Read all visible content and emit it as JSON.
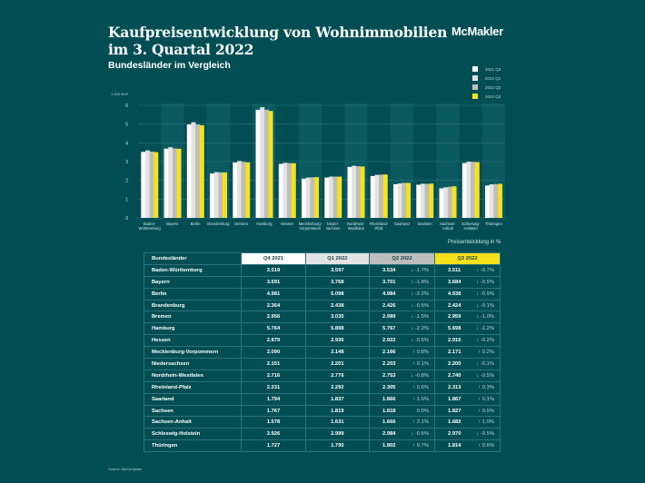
{
  "header": {
    "title_line1": "Kaufpreisentwicklung von Wohnimmobilien",
    "title_line2": "im 3. Quartal 2022",
    "subtitle": "Bundesländer im Vergleich",
    "logo": "McMakler"
  },
  "colors": {
    "background": "#004e54",
    "q4_2021": "#ffffff",
    "q1_2022": "#e3e3e3",
    "q2_2022": "#bdbdbd",
    "q3_2022": "#f5e21c"
  },
  "chart_data": {
    "type": "bar",
    "title": "Kaufpreisentwicklung von Wohnimmobilien im 3. Quartal 2022",
    "subtitle": "Bundesländer im Vergleich",
    "ylabel": "1.000 €/m²",
    "xlabel": "",
    "ylim": [
      0,
      6
    ],
    "yticks": [
      "0",
      "1",
      "2",
      "3",
      "4",
      "5",
      "6"
    ],
    "grid": true,
    "legend_position": "top-right",
    "categories": [
      "Baden-\nWürttemberg",
      "Bayern",
      "Berlin",
      "Brandenburg",
      "Bremen",
      "Hamburg",
      "Hessen",
      "Mecklenburg-\nVorpommern",
      "Nieder-\nsachsen",
      "Nordrhein-\nWestfalen",
      "Rheinland-\nPfalz",
      "Saarland",
      "Sachsen",
      "Sachsen-\nAnhalt",
      "Schleswig-\nHolstein",
      "Thüringen"
    ],
    "series": [
      {
        "name": "2021 Q4",
        "values": [
          3.519,
          3.691,
          4.981,
          2.364,
          2.956,
          5.764,
          2.879,
          2.09,
          2.151,
          2.716,
          2.231,
          1.794,
          1.767,
          1.578,
          2.926,
          1.727
        ]
      },
      {
        "name": "2022 Q1",
        "values": [
          3.597,
          3.768,
          5.098,
          2.438,
          3.035,
          5.898,
          2.936,
          2.148,
          2.201,
          2.776,
          2.292,
          1.837,
          1.819,
          1.631,
          2.999,
          1.79
        ]
      },
      {
        "name": "2022 Q2",
        "values": [
          3.534,
          3.701,
          4.984,
          2.426,
          2.989,
          5.767,
          2.922,
          2.166,
          2.203,
          2.753,
          2.305,
          1.866,
          1.818,
          1.666,
          2.984,
          1.802
        ]
      },
      {
        "name": "2022 Q3",
        "values": [
          3.511,
          3.684,
          4.938,
          2.424,
          2.959,
          5.698,
          2.915,
          2.171,
          2.2,
          2.74,
          2.313,
          1.867,
          1.827,
          1.682,
          2.97,
          1.814
        ]
      }
    ]
  },
  "table": {
    "caption": "Preisentwicklung in %",
    "headers": [
      "Bundesländer",
      "Q4 2021",
      "Q1 2022",
      "Q2 2022",
      "Q3 2022"
    ],
    "rows": [
      {
        "state": "Baden-Württemberg",
        "q4": "3.519",
        "q1": "3.597",
        "q2": "3.534",
        "q2_chg": "↓ -1.7%",
        "q3": "3.511",
        "q3_chg": "↓ -0.7%"
      },
      {
        "state": "Bayern",
        "q4": "3.691",
        "q1": "3.768",
        "q2": "3.701",
        "q2_chg": "↓ -1.8%",
        "q3": "3.684",
        "q3_chg": "↓ -0.5%"
      },
      {
        "state": "Berlin",
        "q4": "4.981",
        "q1": "5.098",
        "q2": "4.984",
        "q2_chg": "↓ -2.2%",
        "q3": "4.938",
        "q3_chg": "↓ -0.9%"
      },
      {
        "state": "Brandenburg",
        "q4": "2.364",
        "q1": "2.438",
        "q2": "2.426",
        "q2_chg": "↓ -0.5%",
        "q3": "2.424",
        "q3_chg": "↓ -0.1%"
      },
      {
        "state": "Bremen",
        "q4": "2.956",
        "q1": "3.035",
        "q2": "2.989",
        "q2_chg": "↓ -1.5%",
        "q3": "2.959",
        "q3_chg": "↓ -1.0%"
      },
      {
        "state": "Hamburg",
        "q4": "5.764",
        "q1": "5.898",
        "q2": "5.767",
        "q2_chg": "↓ -2.2%",
        "q3": "5.698",
        "q3_chg": "↓ -1.2%"
      },
      {
        "state": "Hessen",
        "q4": "2.879",
        "q1": "2.936",
        "q2": "2.922",
        "q2_chg": "↓ -0.5%",
        "q3": "2.915",
        "q3_chg": "↓ -0.2%"
      },
      {
        "state": "Mecklenburg-Vorpommern",
        "q4": "2.090",
        "q1": "2.148",
        "q2": "2.166",
        "q2_chg": "↑ 0.8%",
        "q3": "2.171",
        "q3_chg": "↑ 0.2%"
      },
      {
        "state": "Niedersachsen",
        "q4": "2.151",
        "q1": "2.201",
        "q2": "2.203",
        "q2_chg": "↑ 0.1%",
        "q3": "2.200",
        "q3_chg": "↓ -0.1%"
      },
      {
        "state": "Nordrhein-Westfalen",
        "q4": "2.716",
        "q1": "2.776",
        "q2": "2.753",
        "q2_chg": "↓ -0.8%",
        "q3": "2.740",
        "q3_chg": "↓ -0.5%"
      },
      {
        "state": "Rheinland-Pfalz",
        "q4": "2.231",
        "q1": "2.292",
        "q2": "2.305",
        "q2_chg": "↑ 0.6%",
        "q3": "2.313",
        "q3_chg": "↑ 0.3%"
      },
      {
        "state": "Saarland",
        "q4": "1.794",
        "q1": "1.837",
        "q2": "1.866",
        "q2_chg": "↑ 1.6%",
        "q3": "1.867",
        "q3_chg": "↑ 0.1%"
      },
      {
        "state": "Sachsen",
        "q4": "1.767",
        "q1": "1.819",
        "q2": "1.818",
        "q2_chg": "0.0%",
        "q3": "1.827",
        "q3_chg": "↑ 0.5%"
      },
      {
        "state": "Sachsen-Anhalt",
        "q4": "1.578",
        "q1": "1.631",
        "q2": "1.666",
        "q2_chg": "↑ 2.1%",
        "q3": "1.682",
        "q3_chg": "↑ 1.0%"
      },
      {
        "state": "Schleswig-Holstein",
        "q4": "2.926",
        "q1": "2.999",
        "q2": "2.984",
        "q2_chg": "↓ -0.5%",
        "q3": "2.970",
        "q3_chg": "↓ -0.5%"
      },
      {
        "state": "Thüringen",
        "q4": "1.727",
        "q1": "1.790",
        "q2": "1.802",
        "q2_chg": "↑ 0.7%",
        "q3": "1.814",
        "q3_chg": "↑ 0.6%"
      }
    ]
  },
  "footer": {
    "source": "Source: McCompass"
  }
}
